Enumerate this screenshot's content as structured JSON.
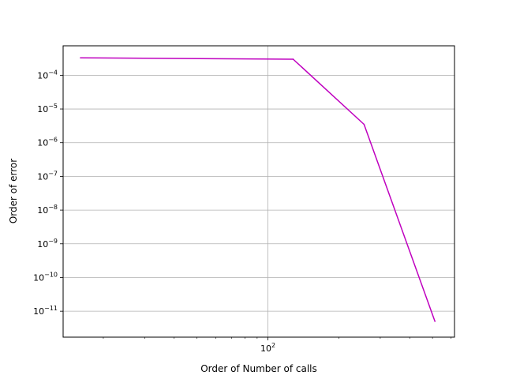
{
  "chart_data": {
    "type": "line",
    "xlabel": "Order of Number of calls",
    "ylabel": "Order of error",
    "x_scale": "log",
    "y_scale": "log",
    "xlim": [
      13.5,
      620
    ],
    "ylim": [
      1.7e-12,
      0.00075
    ],
    "x_ticks": [
      {
        "value": 100,
        "base": "10",
        "exp": "2"
      }
    ],
    "y_ticks": [
      {
        "value": 0.0001,
        "base": "10",
        "exp": "−4"
      },
      {
        "value": 1e-05,
        "base": "10",
        "exp": "−5"
      },
      {
        "value": 1e-06,
        "base": "10",
        "exp": "−6"
      },
      {
        "value": 1e-07,
        "base": "10",
        "exp": "−7"
      },
      {
        "value": 1e-08,
        "base": "10",
        "exp": "−8"
      },
      {
        "value": 1e-09,
        "base": "10",
        "exp": "−9"
      },
      {
        "value": 1e-10,
        "base": "10",
        "exp": "−10"
      },
      {
        "value": 1e-11,
        "base": "10",
        "exp": "−11"
      }
    ],
    "grid": true,
    "series": [
      {
        "color": "#bf00bf",
        "x": [
          16,
          128,
          256,
          512
        ],
        "y": [
          0.00033,
          0.0003,
          3.5e-06,
          5e-12
        ]
      }
    ]
  }
}
